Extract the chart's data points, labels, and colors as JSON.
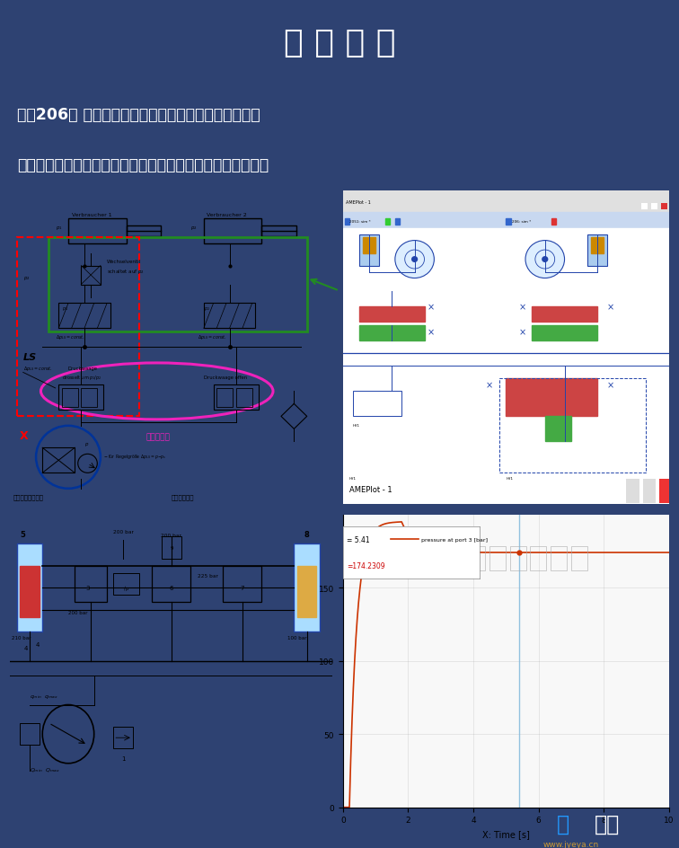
{
  "bg_color": "#2e4272",
  "title": "详 情 介 绍",
  "title_color": "#ffffff",
  "title_fontsize": 26,
  "subtitle1": "《第206讲 负荷传感系统之阀前补唇负载敏感多路阀》",
  "subtitle2": "本节课主要讲阀前补唇负载敏感多路阀的原理结构以及应用。",
  "subtitle_color": "#ffffff",
  "subtitle_fontsize": 12.5,
  "watermark_blue": "爱",
  "watermark_white": "液压",
  "watermark_url": "www.jyeya.cn",
  "label_pump": "负载感应式变量泵",
  "label_system": "负载感应系统",
  "label_compensator": "压力补偿阀",
  "plot_title": "AMEPlot - 1",
  "plot_label": "pressure at port 3 [bar]",
  "plot_x_label": "X: Time [s]",
  "plot_color": "#cc3300",
  "plot_t_mark": "= 5.41",
  "plot_v_mark": "=174.2309"
}
